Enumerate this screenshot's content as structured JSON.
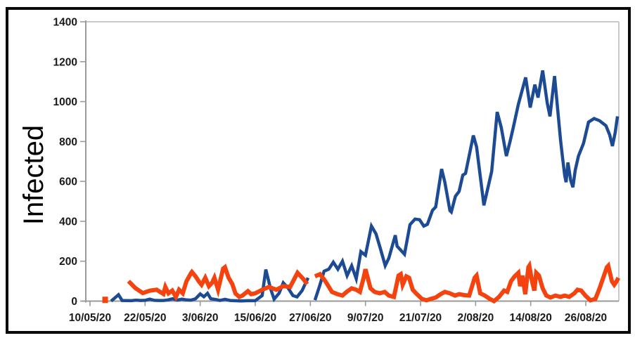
{
  "window": {
    "background": "#ffffff",
    "frame_color": "#0a0a0a"
  },
  "axis_style": {
    "axis_color": "#9a9a9a",
    "grid_color": "#c9c9c9",
    "tick_label_color": "#1a1a1a"
  },
  "chart_data": {
    "type": "line",
    "title": "",
    "xlabel": "",
    "ylabel": "Infected",
    "ylim": [
      0,
      1400
    ],
    "y_ticks": [
      0,
      200,
      400,
      600,
      800,
      1000,
      1200,
      1400
    ],
    "grid": "top-border-only",
    "legend": "none",
    "x_axis": {
      "unit": "date (dd/mm/yy), day offsets from 10/05/20",
      "tick_labels": [
        "10/05/20",
        "22/05/20",
        "3/06/20",
        "15/06/20",
        "27/06/20",
        "9/07/20",
        "21/07/20",
        "2/08/20",
        "14/08/20",
        "26/08/20"
      ],
      "tick_day_offsets": [
        0,
        12,
        24,
        36,
        48,
        60,
        72,
        84,
        96,
        108
      ],
      "max_day": 115.5
    },
    "series": [
      {
        "name": "infected-blue",
        "color": "#1c4b94",
        "stroke_width": 4.5,
        "segments": [
          [
            [
              4.6,
              0
            ],
            [
              5.5,
              18
            ],
            [
              6.2,
              32
            ],
            [
              7,
              3
            ],
            [
              9,
              2
            ],
            [
              10,
              5
            ],
            [
              11,
              3
            ],
            [
              12,
              4
            ],
            [
              13,
              10
            ],
            [
              14,
              4
            ],
            [
              15,
              3
            ],
            [
              16,
              3
            ],
            [
              17,
              6
            ],
            [
              18,
              12
            ],
            [
              19,
              5
            ],
            [
              20,
              10
            ],
            [
              21,
              6
            ],
            [
              22,
              5
            ],
            [
              23,
              12
            ],
            [
              24,
              36
            ],
            [
              24.8,
              22
            ],
            [
              25.6,
              39
            ],
            [
              26.3,
              12
            ],
            [
              27.4,
              8
            ],
            [
              28.3,
              3
            ],
            [
              29.4,
              9
            ],
            [
              30.5,
              3
            ],
            [
              31.4,
              2
            ],
            [
              32.9,
              1
            ],
            [
              34.4,
              2
            ],
            [
              36,
              2
            ],
            [
              37.5,
              28
            ],
            [
              38.3,
              158
            ],
            [
              39.3,
              64
            ],
            [
              40.1,
              10
            ],
            [
              41.2,
              40
            ],
            [
              42.1,
              92
            ],
            [
              43.2,
              64
            ],
            [
              44.2,
              28
            ],
            [
              45.1,
              21
            ],
            [
              46.2,
              53
            ],
            [
              47.5,
              117
            ]
          ],
          [
            [
              49,
              5
            ],
            [
              50,
              75
            ],
            [
              51,
              150
            ],
            [
              52,
              160
            ],
            [
              53,
              195
            ],
            [
              54,
              160
            ],
            [
              55,
              200
            ],
            [
              56,
              128
            ],
            [
              57,
              177
            ],
            [
              58,
              112
            ],
            [
              59,
              248
            ],
            [
              60,
              230
            ],
            [
              61.3,
              376
            ],
            [
              62.3,
              337
            ],
            [
              63.3,
              260
            ],
            [
              64.3,
              178
            ],
            [
              65.1,
              216
            ],
            [
              66.5,
              330
            ],
            [
              66.9,
              275
            ],
            [
              68.5,
              235
            ],
            [
              69.7,
              383
            ],
            [
              70.8,
              411
            ],
            [
              71.8,
              408
            ],
            [
              72.7,
              376
            ],
            [
              73.5,
              385
            ],
            [
              74.6,
              455
            ],
            [
              75.3,
              472
            ],
            [
              76.6,
              662
            ],
            [
              77.3,
              596
            ],
            [
              78.4,
              454
            ],
            [
              78.7,
              447
            ],
            [
              79.6,
              525
            ],
            [
              80.4,
              550
            ],
            [
              81.2,
              631
            ],
            [
              81.8,
              640
            ],
            [
              83.5,
              830
            ],
            [
              84.2,
              773
            ],
            [
              85.6,
              518
            ],
            [
              85.8,
              480
            ],
            [
              86.5,
              550
            ],
            [
              87.5,
              650
            ],
            [
              88.7,
              948
            ],
            [
              89.6,
              869
            ],
            [
              90.7,
              727
            ],
            [
              91.5,
              800
            ],
            [
              92.2,
              870
            ],
            [
              93.3,
              986
            ],
            [
              94.9,
              1121
            ],
            [
              95.9,
              970
            ],
            [
              96.9,
              1085
            ],
            [
              97.6,
              1020
            ],
            [
              98.6,
              1156
            ],
            [
              99.6,
              993
            ],
            [
              100.2,
              926
            ],
            [
              101.2,
              1128
            ],
            [
              102.5,
              808
            ],
            [
              102.9,
              727
            ],
            [
              103.4,
              631
            ],
            [
              103.7,
              596
            ],
            [
              104.1,
              695
            ],
            [
              104.7,
              606
            ],
            [
              105.2,
              571
            ],
            [
              105.7,
              656
            ],
            [
              106.4,
              727
            ],
            [
              107.5,
              791
            ],
            [
              108.6,
              897
            ],
            [
              109.8,
              915
            ],
            [
              111,
              904
            ],
            [
              112.4,
              879
            ],
            [
              113.2,
              833
            ],
            [
              113.8,
              777
            ],
            [
              114.4,
              844
            ],
            [
              114.9,
              926
            ]
          ]
        ]
      },
      {
        "name": "infected-orange",
        "color": "#f4430f",
        "stroke_width": 6,
        "segments": [
          [
            [
              3.3,
              8
            ]
          ],
          [
            [
              8.4,
              100
            ],
            [
              9.9,
              65
            ],
            [
              11.5,
              40
            ],
            [
              13,
              52
            ],
            [
              14.5,
              57
            ],
            [
              16,
              36
            ],
            [
              16.4,
              71
            ],
            [
              17.1,
              39
            ],
            [
              17.9,
              53
            ],
            [
              18.7,
              21
            ],
            [
              19.4,
              57
            ],
            [
              20.2,
              39
            ],
            [
              21,
              99
            ],
            [
              22,
              140
            ],
            [
              22.2,
              146
            ],
            [
              23,
              124
            ],
            [
              23.7,
              99
            ],
            [
              24.3,
              82
            ],
            [
              25.1,
              117
            ],
            [
              25.9,
              75
            ],
            [
              26.6,
              92
            ],
            [
              27.1,
              117
            ],
            [
              27.9,
              57
            ],
            [
              29,
              163
            ],
            [
              29.4,
              170
            ],
            [
              30.2,
              117
            ],
            [
              31,
              85
            ],
            [
              31.7,
              38
            ],
            [
              32.5,
              21
            ],
            [
              33.2,
              28
            ],
            [
              34.4,
              50
            ],
            [
              35.1,
              35
            ],
            [
              36,
              39
            ],
            [
              37.5,
              57
            ],
            [
              39,
              71
            ],
            [
              40.6,
              57
            ],
            [
              42.1,
              75
            ],
            [
              43.6,
              71
            ],
            [
              45.2,
              142
            ],
            [
              46.5,
              110
            ],
            [
              47.3,
              85
            ]
          ],
          [
            [
              49,
              124
            ],
            [
              50.1,
              135
            ],
            [
              51.3,
              99
            ],
            [
              52.7,
              46
            ],
            [
              53.9,
              35
            ],
            [
              55,
              28
            ],
            [
              55.9,
              46
            ],
            [
              57,
              64
            ],
            [
              58,
              57
            ],
            [
              58.8,
              46
            ],
            [
              59.6,
              117
            ],
            [
              60,
              160
            ],
            [
              61.1,
              64
            ],
            [
              62,
              46
            ],
            [
              63.1,
              39
            ],
            [
              64.2,
              46
            ],
            [
              65.1,
              28
            ],
            [
              66.2,
              21
            ],
            [
              67.2,
              128
            ],
            [
              67.7,
              135
            ],
            [
              68.1,
              82
            ],
            [
              68.9,
              124
            ],
            [
              69.5,
              117
            ],
            [
              70.3,
              57
            ],
            [
              71.2,
              35
            ],
            [
              72.3,
              11
            ],
            [
              73.3,
              4
            ],
            [
              74.2,
              11
            ],
            [
              75.3,
              18
            ],
            [
              76.4,
              35
            ],
            [
              77.3,
              46
            ],
            [
              78.4,
              39
            ],
            [
              79.5,
              28
            ],
            [
              80.4,
              35
            ],
            [
              81.5,
              30
            ],
            [
              82.6,
              28
            ],
            [
              83.8,
              117
            ],
            [
              84.2,
              128
            ],
            [
              85,
              39
            ],
            [
              86,
              28
            ],
            [
              87.1,
              11
            ],
            [
              88,
              0
            ],
            [
              89.1,
              21
            ],
            [
              90.2,
              53
            ],
            [
              90.9,
              46
            ],
            [
              91.7,
              99
            ],
            [
              92.5,
              124
            ],
            [
              93.3,
              142
            ],
            [
              93.7,
              75
            ],
            [
              94.2,
              128
            ],
            [
              94.8,
              35
            ],
            [
              95.5,
              170
            ],
            [
              95.7,
              177
            ],
            [
              96.3,
              99
            ],
            [
              96.8,
              53
            ],
            [
              97.2,
              142
            ],
            [
              97.8,
              128
            ],
            [
              98.6,
              64
            ],
            [
              99.4,
              28
            ],
            [
              100.3,
              18
            ],
            [
              101.4,
              28
            ],
            [
              102.5,
              21
            ],
            [
              103.4,
              28
            ],
            [
              104.4,
              21
            ],
            [
              105.5,
              39
            ],
            [
              106.2,
              57
            ],
            [
              107,
              53
            ],
            [
              107.9,
              28
            ],
            [
              109,
              4
            ],
            [
              110.1,
              11
            ],
            [
              111,
              64
            ],
            [
              111.8,
              117
            ],
            [
              112.6,
              170
            ],
            [
              112.9,
              177
            ],
            [
              113.7,
              99
            ],
            [
              114.2,
              82
            ],
            [
              114.6,
              95
            ],
            [
              115.1,
              117
            ]
          ]
        ]
      }
    ]
  }
}
